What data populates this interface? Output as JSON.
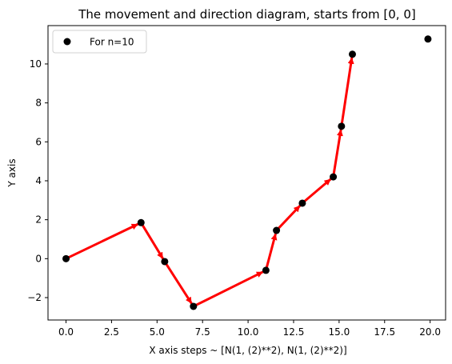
{
  "chart_data": {
    "type": "scatter",
    "title": "The movement and direction diagram, starts from [0, 0]",
    "xlabel": "X axis            steps ~ [N(1, (2)**2), N(1, (2)**2)]",
    "ylabel": "Y axis",
    "xlim": [
      -0.99,
      20.85
    ],
    "ylim": [
      -3.15,
      11.97
    ],
    "x_ticks": [
      0.0,
      2.5,
      5.0,
      7.5,
      10.0,
      12.5,
      15.0,
      17.5,
      20.0
    ],
    "x_tick_labels": [
      "0.0",
      "2.5",
      "5.0",
      "7.5",
      "10.0",
      "12.5",
      "15.0",
      "17.5",
      "20.0"
    ],
    "y_ticks": [
      -2,
      0,
      2,
      4,
      6,
      8,
      10
    ],
    "y_tick_labels": [
      "−2",
      "0",
      "2",
      "4",
      "6",
      "8",
      "10"
    ],
    "grid": false,
    "legend": {
      "position": "top-left",
      "entries": [
        "For n=10"
      ]
    },
    "series": [
      {
        "name": "For n=10",
        "marker": "circle",
        "color": "#000000",
        "x": [
          0.0,
          4.12,
          5.42,
          7.0,
          10.98,
          11.56,
          12.98,
          14.68,
          15.13,
          15.73,
          19.88
        ],
        "y": [
          0.0,
          1.85,
          -0.15,
          -2.45,
          -0.6,
          1.45,
          2.85,
          4.2,
          6.8,
          10.5,
          11.28
        ]
      }
    ],
    "arrows": {
      "color": "#ff0000",
      "description_source": "steps between consecutive points",
      "from_index_to_index": [
        [
          0,
          1
        ],
        [
          1,
          2
        ],
        [
          2,
          3
        ],
        [
          3,
          4
        ],
        [
          4,
          5
        ],
        [
          5,
          6
        ],
        [
          6,
          7
        ],
        [
          7,
          8
        ],
        [
          8,
          9
        ]
      ]
    }
  }
}
